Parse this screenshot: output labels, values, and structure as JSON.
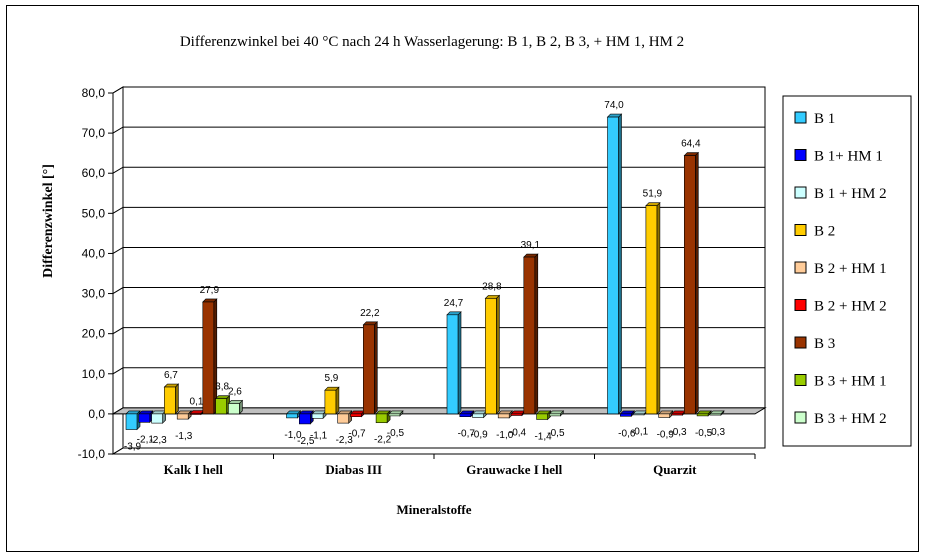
{
  "chart_data": {
    "type": "bar",
    "title": "Differenzwinkel bei 40 °C nach 24 h Wasserlagerung: B 1, B 2, B 3, + HM 1, HM 2",
    "xlabel": "Mineralstoffe",
    "ylabel": "Differenzwinkel [°]",
    "ylim": [
      -10,
      80
    ],
    "yticks": [
      "-10,0",
      "0,0",
      "10,0",
      "20,0",
      "30,0",
      "40,0",
      "50,0",
      "60,0",
      "70,0",
      "80,0"
    ],
    "grid": true,
    "legend": "right",
    "categories": [
      "Kalk I  hell",
      "Diabas III",
      "Grauwacke I hell",
      "Quarzit"
    ],
    "series": [
      {
        "name": "B 1",
        "color": "#33CCFF",
        "values": [
          -3.9,
          -1.0,
          24.7,
          74.0
        ],
        "labels": [
          "-3,9",
          "-1,0",
          "24,7",
          "74,0"
        ]
      },
      {
        "name": "B 1+ HM 1",
        "color": "#0000FF",
        "values": [
          -2.1,
          -2.5,
          -0.7,
          -0.6
        ],
        "labels": [
          "-2,1",
          "-2,5",
          "-0,7",
          "-0,6"
        ]
      },
      {
        "name": "B 1 + HM 2",
        "color": "#CCFFFF",
        "values": [
          -2.3,
          -1.1,
          -0.9,
          -0.1
        ],
        "labels": [
          "-2,3",
          "-1,1",
          "-0,9",
          "-0,1"
        ]
      },
      {
        "name": "B 2",
        "color": "#FFCC00",
        "values": [
          6.7,
          5.9,
          28.8,
          51.9
        ],
        "labels": [
          "6,7",
          "5,9",
          "28,8",
          "51,9"
        ]
      },
      {
        "name": "B 2 + HM 1",
        "color": "#FFCC99",
        "values": [
          -1.3,
          -2.3,
          -1.0,
          -0.9
        ],
        "labels": [
          "-1,3",
          "-2,3",
          "-1,0",
          "-0,9"
        ]
      },
      {
        "name": "B 2 + HM 2",
        "color": "#FF0000",
        "values": [
          0.1,
          -0.7,
          -0.4,
          -0.3
        ],
        "labels": [
          "0,1",
          "-0,7",
          "-0,4",
          "-0,3"
        ]
      },
      {
        "name": "B 3",
        "color": "#993300",
        "values": [
          27.9,
          22.2,
          39.1,
          64.4
        ],
        "labels": [
          "27,9",
          "22,2",
          "39,1",
          "64,4"
        ]
      },
      {
        "name": "B 3 + HM 1",
        "color": "#99CC00",
        "values": [
          3.8,
          -2.2,
          -1.4,
          -0.5
        ],
        "labels": [
          "3,8",
          "-2,2",
          "-1,4",
          "-0,5"
        ]
      },
      {
        "name": "B 3 + HM 2",
        "color": "#CCFFCC",
        "values": [
          2.6,
          -0.5,
          -0.5,
          -0.3
        ],
        "labels": [
          "2,6",
          "-0,5",
          "-0,5",
          "-0,3"
        ]
      }
    ]
  }
}
